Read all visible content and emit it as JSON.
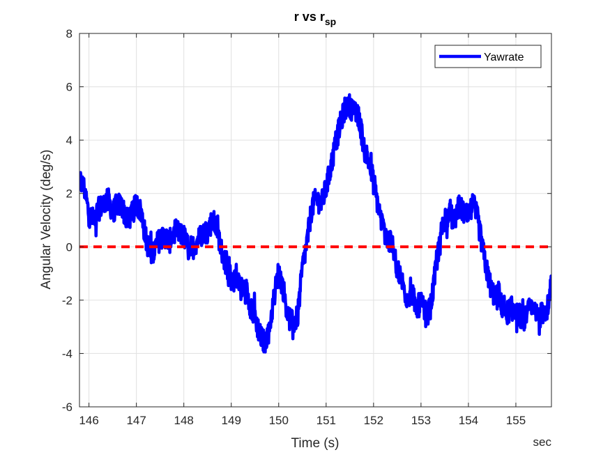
{
  "chart_data": {
    "type": "line",
    "title": "r vs r",
    "title_subscript": "sp",
    "xlabel": "Time (s)",
    "ylabel": "Angular Velocity (deg/s)",
    "x_unit_label": "sec",
    "xlim": [
      145.8,
      155.75
    ],
    "ylim": [
      -6,
      8
    ],
    "xticks": [
      "146",
      "147",
      "148",
      "149",
      "150",
      "151",
      "152",
      "153",
      "154",
      "155"
    ],
    "yticks": [
      "-6",
      "-4",
      "-2",
      "0",
      "2",
      "4",
      "6",
      "8"
    ],
    "grid": true,
    "legend_position": "top-right",
    "colors": {
      "yawrate": "#0000ff",
      "setpoint": "#ff0000",
      "axis": "#262626",
      "grid": "#e0e0e0"
    },
    "series": [
      {
        "name": "Yawrate",
        "style": "solid",
        "noise_amplitude": 0.45,
        "x": [
          145.8,
          145.9,
          146.0,
          146.1,
          146.2,
          146.3,
          146.4,
          146.5,
          146.6,
          146.7,
          146.8,
          146.9,
          147.0,
          147.1,
          147.2,
          147.3,
          147.4,
          147.5,
          147.6,
          147.7,
          147.8,
          147.9,
          148.0,
          148.1,
          148.2,
          148.3,
          148.4,
          148.5,
          148.6,
          148.7,
          148.8,
          148.9,
          149.0,
          149.1,
          149.2,
          149.3,
          149.4,
          149.5,
          149.6,
          149.7,
          149.8,
          149.9,
          150.0,
          150.1,
          150.2,
          150.3,
          150.4,
          150.5,
          150.6,
          150.7,
          150.8,
          150.9,
          151.0,
          151.1,
          151.2,
          151.3,
          151.4,
          151.5,
          151.6,
          151.7,
          151.8,
          151.9,
          152.0,
          152.1,
          152.2,
          152.3,
          152.4,
          152.5,
          152.6,
          152.7,
          152.8,
          152.9,
          153.0,
          153.1,
          153.2,
          153.3,
          153.4,
          153.5,
          153.6,
          153.7,
          153.8,
          153.9,
          154.0,
          154.1,
          154.2,
          154.3,
          154.4,
          154.5,
          154.6,
          154.7,
          154.8,
          154.9,
          155.0,
          155.1,
          155.2,
          155.3,
          155.4,
          155.5,
          155.6,
          155.7,
          155.75
        ],
        "y": [
          2.5,
          2.2,
          1.2,
          1.0,
          1.4,
          1.6,
          1.8,
          1.3,
          1.6,
          1.5,
          1.0,
          1.2,
          1.6,
          1.3,
          0.3,
          -0.3,
          0.0,
          0.3,
          0.4,
          0.2,
          0.6,
          0.5,
          0.4,
          -0.1,
          0.0,
          0.3,
          0.5,
          0.6,
          1.0,
          0.7,
          -0.2,
          -0.7,
          -1.2,
          -1.0,
          -1.6,
          -1.5,
          -2.2,
          -2.6,
          -3.3,
          -3.6,
          -3.1,
          -1.9,
          -0.9,
          -1.6,
          -2.6,
          -2.9,
          -2.6,
          -0.8,
          0.2,
          1.5,
          1.8,
          1.6,
          2.2,
          3.0,
          3.9,
          4.6,
          5.2,
          5.3,
          5.0,
          4.8,
          3.7,
          3.2,
          2.4,
          1.5,
          0.7,
          0.3,
          0.0,
          -0.8,
          -1.3,
          -1.9,
          -1.7,
          -2.3,
          -2.1,
          -2.6,
          -2.3,
          -1.0,
          0.3,
          1.1,
          1.2,
          1.0,
          1.5,
          1.3,
          1.1,
          1.6,
          1.0,
          -0.1,
          -1.0,
          -1.7,
          -1.9,
          -2.2,
          -2.5,
          -2.3,
          -2.5,
          -2.6,
          -2.7,
          -2.3,
          -2.5,
          -2.6,
          -2.4,
          -2.2,
          -1.3
        ]
      },
      {
        "name": "",
        "style": "dashed",
        "x": [
          145.8,
          155.75
        ],
        "y": [
          0,
          0
        ]
      }
    ]
  }
}
